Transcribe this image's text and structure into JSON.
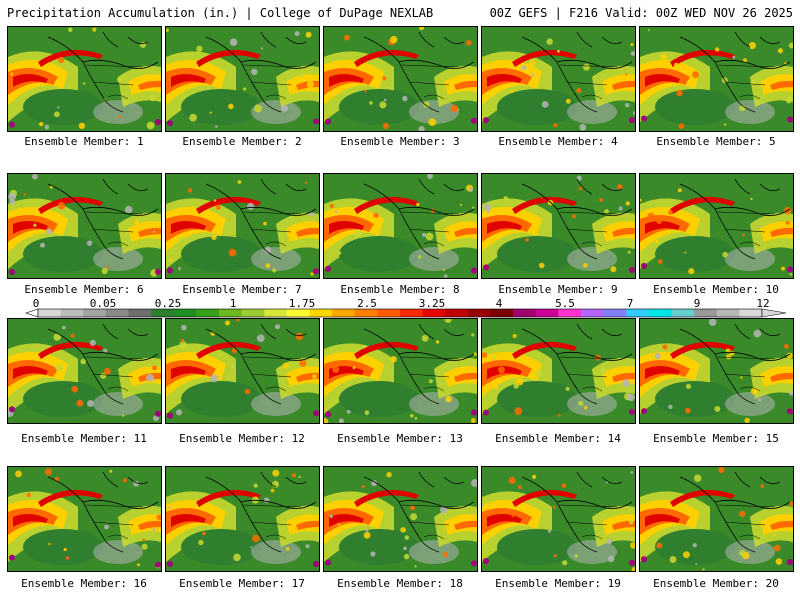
{
  "header": {
    "left_title": "Precipitation Accumulation (in.) | College of DuPage NEXLAB",
    "right_title": "00Z GEFS | F216 Valid: 00Z WED NOV 26 2025"
  },
  "panels": [
    {
      "label": "Ensemble Member: 1"
    },
    {
      "label": "Ensemble Member: 2"
    },
    {
      "label": "Ensemble Member: 3"
    },
    {
      "label": "Ensemble Member: 4"
    },
    {
      "label": "Ensemble Member: 5"
    },
    {
      "label": "Ensemble Member: 6"
    },
    {
      "label": "Ensemble Member: 7"
    },
    {
      "label": "Ensemble Member: 8"
    },
    {
      "label": "Ensemble Member: 9"
    },
    {
      "label": "Ensemble Member: 10"
    },
    {
      "label": "Ensemble Member: 11"
    },
    {
      "label": "Ensemble Member: 12"
    },
    {
      "label": "Ensemble Member: 13"
    },
    {
      "label": "Ensemble Member: 14"
    },
    {
      "label": "Ensemble Member: 15"
    },
    {
      "label": "Ensemble Member: 16"
    },
    {
      "label": "Ensemble Member: 17"
    },
    {
      "label": "Ensemble Member: 18"
    },
    {
      "label": "Ensemble Member: 19"
    },
    {
      "label": "Ensemble Member: 20"
    }
  ],
  "colorbar": {
    "tick_labels": [
      "0",
      "0.05",
      "0.25",
      "1",
      "1.75",
      "2.5",
      "3.25",
      "4",
      "5.5",
      "7",
      "9",
      "12"
    ],
    "colors": [
      "#d8d8d8",
      "#bdbdbd",
      "#a3a3a3",
      "#8a8a8a",
      "#6e6e6e",
      "#2f7d2f",
      "#1f8f1f",
      "#37a01b",
      "#6bb821",
      "#9acd32",
      "#d8e83a",
      "#ffff33",
      "#ffd700",
      "#ffa500",
      "#ff7f00",
      "#ff5a00",
      "#ff2a00",
      "#e60000",
      "#c00000",
      "#990000",
      "#7a0000",
      "#a0006e",
      "#cc0099",
      "#ff33cc",
      "#b266ff",
      "#8080ff",
      "#33ccff",
      "#00e5e5",
      "#66cccc",
      "#999999",
      "#b8b8b8",
      "#d9d9d9"
    ]
  },
  "map_colors": {
    "land_background": "#3a8a2a",
    "ocean_background": "#2f7f2f",
    "low": "#b5b5b5",
    "light": "#c8d830",
    "moderate": "#ffd000",
    "heavy": "#ff6a00",
    "very_heavy": "#e00000",
    "extreme": "#a0007a",
    "coastline": "#000000"
  }
}
